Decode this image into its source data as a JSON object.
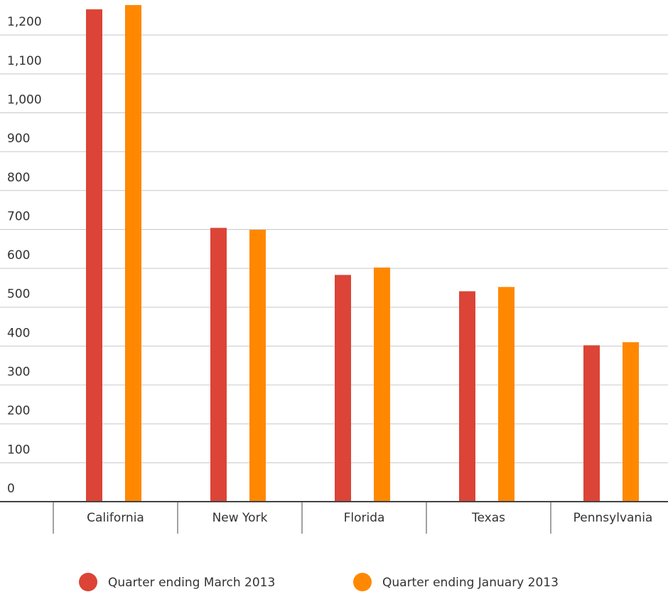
{
  "chart_data": {
    "type": "bar",
    "categories": [
      "California",
      "New York",
      "Florida",
      "Texas",
      "Pennsylvania"
    ],
    "series": [
      {
        "name": "Quarter ending March 2013",
        "color": "#db4437",
        "values": [
          1266,
          704,
          583,
          541,
          402
        ]
      },
      {
        "name": "Quarter ending January 2013",
        "color": "#ff8800",
        "values": [
          1277,
          699,
          602,
          552,
          410
        ]
      }
    ],
    "ylim": [
      0,
      1290
    ],
    "yticks": [
      0,
      100,
      200,
      300,
      400,
      500,
      600,
      700,
      800,
      900,
      {
        "value": 1000,
        "label": "1,000"
      },
      {
        "value": 1100,
        "label": "1,100"
      },
      {
        "value": 1200,
        "label": "1,200"
      }
    ],
    "grid": true,
    "legend": "bottom"
  }
}
